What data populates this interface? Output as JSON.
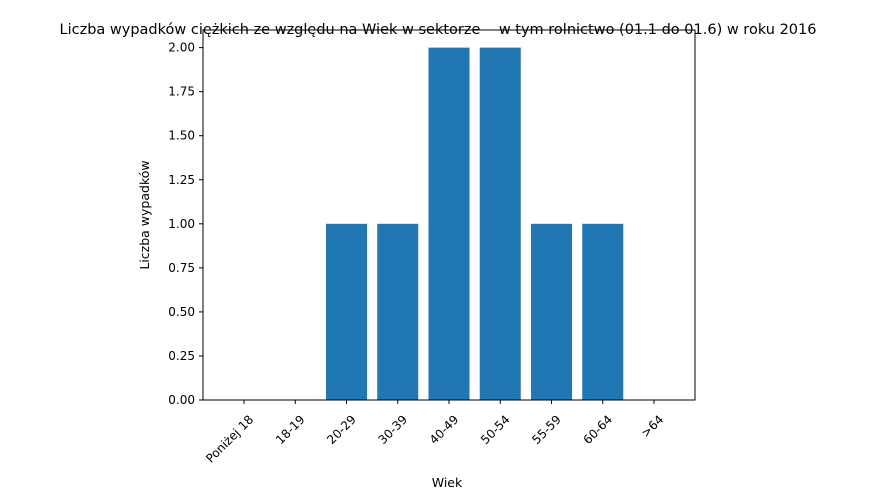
{
  "chart_data": {
    "type": "bar",
    "title": "Liczba wypadków ciężkich ze względu na Wiek w sektorze    w tym rolnictwo (01.1 do 01.6) w roku 2016",
    "xlabel": "Wiek",
    "ylabel": "Liczba wypadków",
    "categories": [
      "Poniżej 18",
      "18-19",
      "20-29",
      "30-39",
      "40-49",
      "50-54",
      "55-59",
      "60-64",
      ">64"
    ],
    "values": [
      0,
      0,
      1,
      1,
      2,
      2,
      1,
      1,
      0
    ],
    "ylim": [
      0,
      2.1
    ],
    "yticks": [
      "0.00",
      "0.25",
      "0.50",
      "0.75",
      "1.00",
      "1.25",
      "1.50",
      "1.75",
      "2.00"
    ],
    "bar_color": "#1f77b4",
    "grid": false,
    "legend": "none"
  }
}
